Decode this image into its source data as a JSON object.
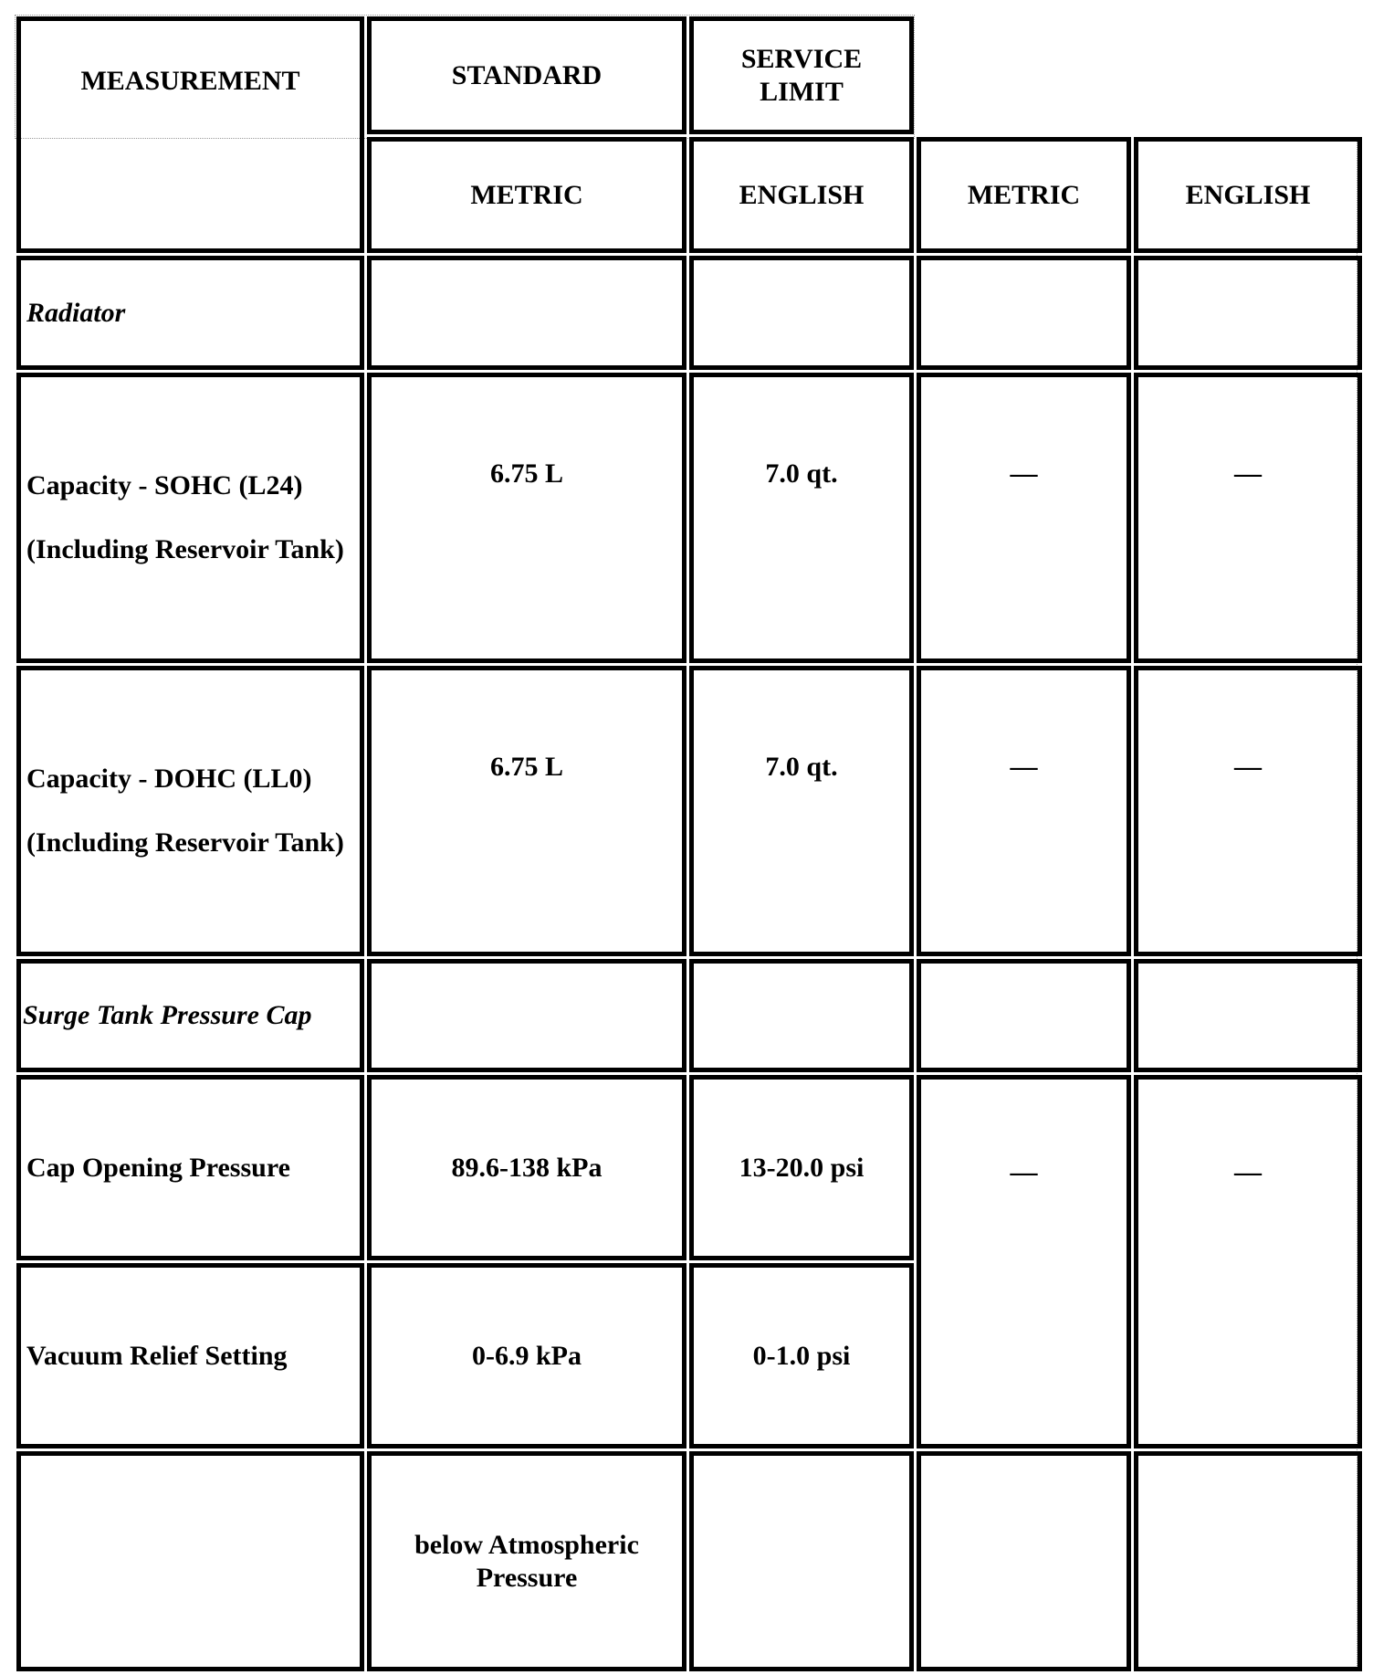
{
  "headers": {
    "measurement": "MEASUREMENT",
    "standard": "STANDARD",
    "service_limit": "SERVICE LIMIT",
    "std_metric": "METRIC",
    "std_english": "ENGLISH",
    "sl_metric": "METRIC",
    "sl_english": "ENGLISH"
  },
  "rows": {
    "radiator": {
      "label": "Radiator"
    },
    "sohc": {
      "label": "Capacity - SOHC (L24)",
      "note": "(Including Reservoir Tank)",
      "metric": "6.75 L",
      "english": "7.0 qt.",
      "sl_metric": "—",
      "sl_english": "—"
    },
    "dohc": {
      "label": "Capacity - DOHC (LL0)",
      "note": "(Including Reservoir Tank)",
      "metric": "6.75 L",
      "english": "7.0 qt.",
      "sl_metric": "—",
      "sl_english": "—"
    },
    "surge": {
      "label": "Surge Tank Pressure Cap"
    },
    "cap_opening": {
      "label": "Cap Opening Pressure",
      "metric": "89.6-138 kPa",
      "english": "13-20.0 psi",
      "sl_metric": "—",
      "sl_english": "—"
    },
    "vacuum": {
      "label": "Vacuum Relief Setting",
      "metric": "0-6.9 kPa",
      "english": "0-1.0 psi"
    },
    "below": {
      "metric": "below Atmospheric Pressure"
    }
  }
}
